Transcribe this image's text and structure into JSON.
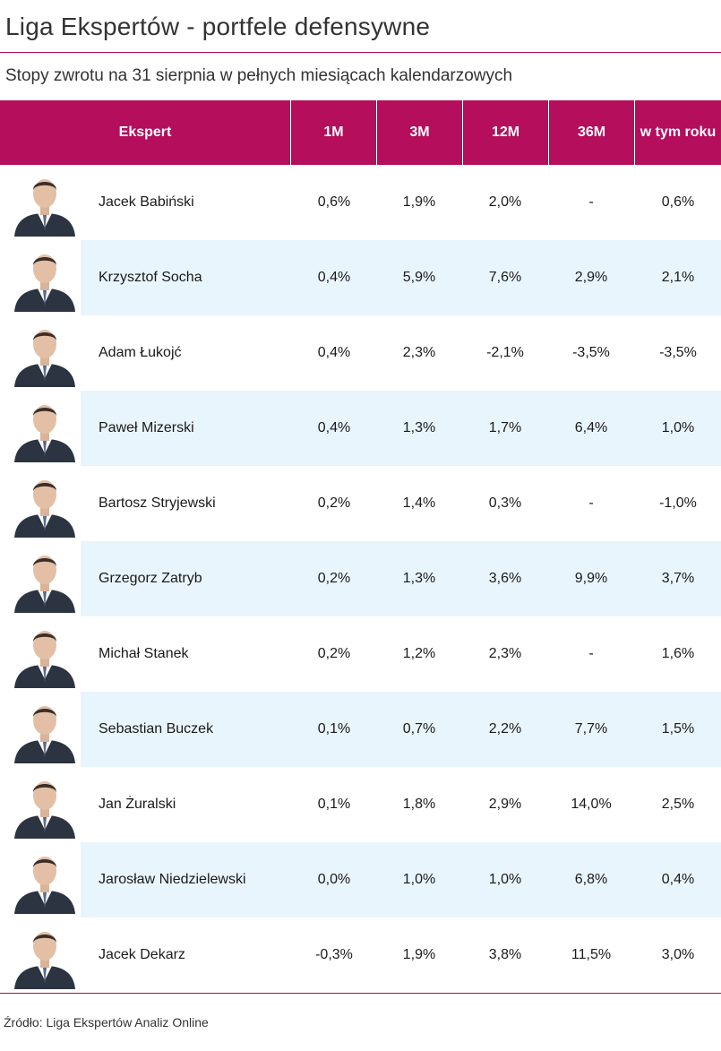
{
  "title": "Liga Ekspertów - portfele defensywne",
  "subtitle": "Stopy zwrotu na 31 sierpnia w pełnych miesiącach kalendarzowych",
  "source": "Źródło: Liga Ekspertów Analiz Online",
  "colors": {
    "header": "#b40e5c",
    "rule": "#b30a5c",
    "alt_row": "#e9f5fc"
  },
  "chart_data": {
    "type": "table",
    "columns": [
      "Ekspert",
      "1M",
      "3M",
      "12M",
      "36M",
      "w tym roku"
    ],
    "rows": [
      {
        "name": "Jacek Babiński",
        "avatar": "person-photo",
        "values": [
          "0,6%",
          "1,9%",
          "2,0%",
          "-",
          "0,6%"
        ]
      },
      {
        "name": "Krzysztof Socha",
        "avatar": "person-photo",
        "values": [
          "0,4%",
          "5,9%",
          "7,6%",
          "2,9%",
          "2,1%"
        ]
      },
      {
        "name": "Adam Łukojć",
        "avatar": "person-photo",
        "values": [
          "0,4%",
          "2,3%",
          "-2,1%",
          "-3,5%",
          "-3,5%"
        ]
      },
      {
        "name": "Paweł Mizerski",
        "avatar": "person-photo",
        "values": [
          "0,4%",
          "1,3%",
          "1,7%",
          "6,4%",
          "1,0%"
        ]
      },
      {
        "name": "Bartosz Stryjewski",
        "avatar": "person-photo",
        "values": [
          "0,2%",
          "1,4%",
          "0,3%",
          "-",
          "-1,0%"
        ]
      },
      {
        "name": "Grzegorz Zatryb",
        "avatar": "person-photo",
        "values": [
          "0,2%",
          "1,3%",
          "3,6%",
          "9,9%",
          "3,7%"
        ]
      },
      {
        "name": "Michał Stanek",
        "avatar": "person-photo",
        "values": [
          "0,2%",
          "1,2%",
          "2,3%",
          "-",
          "1,6%"
        ]
      },
      {
        "name": "Sebastian Buczek",
        "avatar": "person-photo",
        "values": [
          "0,1%",
          "0,7%",
          "2,2%",
          "7,7%",
          "1,5%"
        ]
      },
      {
        "name": "Jan Żuralski",
        "avatar": "person-photo",
        "values": [
          "0,1%",
          "1,8%",
          "2,9%",
          "14,0%",
          "2,5%"
        ]
      },
      {
        "name": "Jarosław Niedzielewski",
        "avatar": "person-photo",
        "values": [
          "0,0%",
          "1,0%",
          "1,0%",
          "6,8%",
          "0,4%"
        ]
      },
      {
        "name": "Jacek Dekarz",
        "avatar": "person-photo",
        "values": [
          "-0,3%",
          "1,9%",
          "3,8%",
          "11,5%",
          "3,0%"
        ]
      }
    ]
  }
}
